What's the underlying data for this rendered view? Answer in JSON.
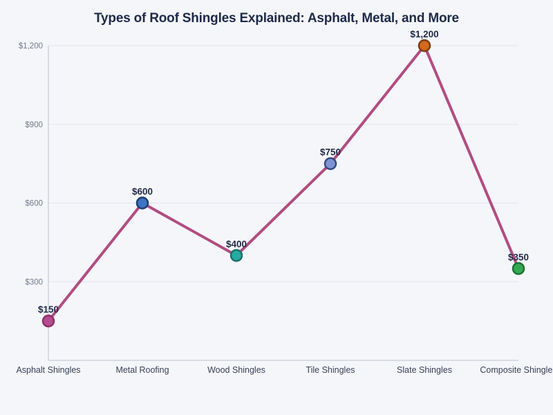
{
  "page": {
    "background_color": "#f4f6fa"
  },
  "chart_data": {
    "type": "line",
    "title": "Types of Roof Shingles Explained: Asphalt, Metal, and More",
    "categories": [
      "Asphalt Shingles",
      "Metal Roofing",
      "Wood Shingles",
      "Tile Shingles",
      "Slate Shingles",
      "Composite Shingles"
    ],
    "values": [
      150,
      600,
      400,
      750,
      1200,
      350
    ],
    "point_labels": [
      "$150",
      "$600",
      "$400",
      "$750",
      "$1,200",
      "$350"
    ],
    "xlabel": "",
    "ylabel": "",
    "ylim": [
      0,
      1200
    ],
    "yticks": [
      300,
      600,
      900,
      1200
    ],
    "ytick_labels": [
      "$300",
      "$600",
      "$900",
      "$1,200"
    ],
    "grid": "horizontal",
    "legend": "none",
    "colors": {
      "line": "#b24c81",
      "marker_fills": [
        "#b54b8f",
        "#3c73c3",
        "#28a8a0",
        "#7d95d3",
        "#d2691e",
        "#35a952"
      ],
      "marker_edges": [
        "#8c3069",
        "#1d3f73",
        "#17726c",
        "#39497f",
        "#7d3b12",
        "#1e7034"
      ],
      "title": "#1e2a48",
      "point_label": "#222b47",
      "ytick_label": "#757b8e",
      "category_label": "#3a4056",
      "grid_line": "#e1e4ea",
      "spine": "#c8ccd6"
    }
  }
}
